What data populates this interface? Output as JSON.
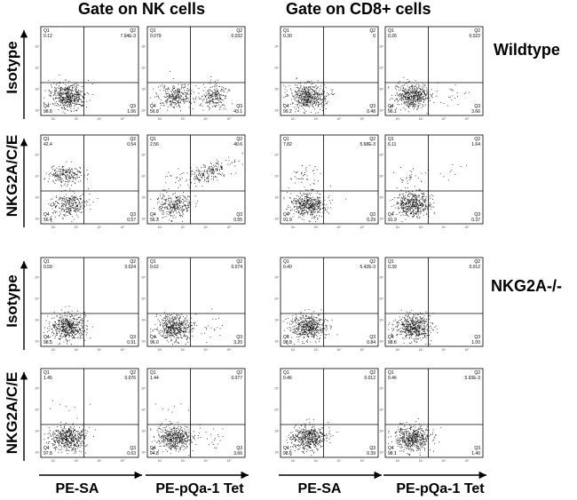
{
  "headers": {
    "nk": "Gate on NK cells",
    "cd8": "Gate on CD8+ cells"
  },
  "genotypes": {
    "wildtype": "Wildtype",
    "ko": "NKG2A-/-"
  },
  "row_labels": {
    "isotype": "Isotype",
    "nkg2a": "NKG2A/C/E"
  },
  "column_labels": {
    "c1": "PE-SA",
    "c2": "PE-pQa-1 Tet",
    "c3": "PE-SA",
    "c4": "PE-pQa-1 Tet"
  },
  "quadrant_names": [
    "Q1",
    "Q2",
    "Q3",
    "Q4"
  ],
  "tick_labels": [
    "10²",
    "10³",
    "10⁴",
    "10⁵"
  ],
  "colors": {
    "dots": "#1a1a1a",
    "axis": "#000000"
  },
  "chart_data": [
    {
      "type": "scatter",
      "genotype": "Wildtype",
      "gate": "NK cells",
      "stain": "Isotype",
      "x_label": "PE-SA",
      "quadrants": {
        "Q1": "0.12",
        "Q2": "7.94E-3",
        "Q3": "1.06",
        "Q4": "98.8"
      }
    },
    {
      "type": "scatter",
      "genotype": "Wildtype",
      "gate": "NK cells",
      "stain": "Isotype",
      "x_label": "PE-pQa-1 Tet",
      "quadrants": {
        "Q1": "0.079",
        "Q2": "0.032",
        "Q3": "43.1",
        "Q4": "56.8"
      }
    },
    {
      "type": "scatter",
      "genotype": "Wildtype",
      "gate": "CD8+ cells",
      "stain": "Isotype",
      "x_label": "PE-SA",
      "quadrants": {
        "Q1": "0.30",
        "Q2": "0",
        "Q3": "0.48",
        "Q4": "99.2"
      }
    },
    {
      "type": "scatter",
      "genotype": "Wildtype",
      "gate": "CD8+ cells",
      "stain": "Isotype",
      "x_label": "PE-pQa-1 Tet",
      "quadrants": {
        "Q1": "0.26",
        "Q2": "0.022",
        "Q3": "3.66",
        "Q4": "96.1"
      }
    },
    {
      "type": "scatter",
      "genotype": "Wildtype",
      "gate": "NK cells",
      "stain": "NKG2A/C/E",
      "x_label": "PE-SA",
      "quadrants": {
        "Q1": "42.4",
        "Q2": "0.54",
        "Q3": "0.57",
        "Q4": "56.4"
      }
    },
    {
      "type": "scatter",
      "genotype": "Wildtype",
      "gate": "NK cells",
      "stain": "NKG2A/C/E",
      "x_label": "PE-pQa-1 Tet",
      "quadrants": {
        "Q1": "2.56",
        "Q2": "40.6",
        "Q3": "0.55",
        "Q4": "56.3"
      }
    },
    {
      "type": "scatter",
      "genotype": "Wildtype",
      "gate": "CD8+ cells",
      "stain": "NKG2A/C/E",
      "x_label": "PE-SA",
      "quadrants": {
        "Q1": "7.82",
        "Q2": "5.68E-3",
        "Q3": "0.29",
        "Q4": "91.9"
      }
    },
    {
      "type": "scatter",
      "genotype": "Wildtype",
      "gate": "CD8+ cells",
      "stain": "NKG2A/C/E",
      "x_label": "PE-pQa-1 Tet",
      "quadrants": {
        "Q1": "6.11",
        "Q2": "1.64",
        "Q3": "0.37",
        "Q4": "91.9"
      }
    },
    {
      "type": "scatter",
      "genotype": "NKG2A-/-",
      "gate": "NK cells",
      "stain": "Isotype",
      "x_label": "PE-SA",
      "quadrants": {
        "Q1": "0.59",
        "Q2": "0.024",
        "Q3": "0.91",
        "Q4": "98.5"
      }
    },
    {
      "type": "scatter",
      "genotype": "NKG2A-/-",
      "gate": "NK cells",
      "stain": "Isotype",
      "x_label": "PE-pQa-1 Tet",
      "quadrants": {
        "Q1": "0.62",
        "Q2": "0.074",
        "Q3": "3.20",
        "Q4": "96.0"
      }
    },
    {
      "type": "scatter",
      "genotype": "NKG2A-/-",
      "gate": "CD8+ cells",
      "stain": "Isotype",
      "x_label": "PE-SA",
      "quadrants": {
        "Q1": "0.40",
        "Q2": "5.42E-3",
        "Q3": "0.84",
        "Q4": "98.8"
      }
    },
    {
      "type": "scatter",
      "genotype": "NKG2A-/-",
      "gate": "CD8+ cells",
      "stain": "Isotype",
      "x_label": "PE-pQa-1 Tet",
      "quadrants": {
        "Q1": "0.39",
        "Q2": "0.012",
        "Q3": "1.00",
        "Q4": "98.6"
      }
    },
    {
      "type": "scatter",
      "genotype": "NKG2A-/-",
      "gate": "NK cells",
      "stain": "NKG2A/C/E",
      "x_label": "PE-SA",
      "quadrants": {
        "Q1": "1.45",
        "Q2": "0.076",
        "Q3": "0.63",
        "Q4": "97.8"
      }
    },
    {
      "type": "scatter",
      "genotype": "NKG2A-/-",
      "gate": "NK cells",
      "stain": "NKG2A/C/E",
      "x_label": "PE-pQa-1 Tet",
      "quadrants": {
        "Q1": "1.44",
        "Q2": "0.077",
        "Q3": "3.66",
        "Q4": "94.8"
      }
    },
    {
      "type": "scatter",
      "genotype": "NKG2A-/-",
      "gate": "CD8+ cells",
      "stain": "NKG2A/C/E",
      "x_label": "PE-SA",
      "quadrants": {
        "Q1": "0.46",
        "Q2": "0.012",
        "Q3": "0.39",
        "Q4": "98.6"
      }
    },
    {
      "type": "scatter",
      "genotype": "NKG2A-/-",
      "gate": "CD8+ cells",
      "stain": "NKG2A/C/E",
      "x_label": "PE-pQa-1 Tet",
      "quadrants": {
        "Q1": "0.46",
        "Q2": "5.93E-3",
        "Q3": "1.40",
        "Q4": "98.1"
      }
    }
  ]
}
